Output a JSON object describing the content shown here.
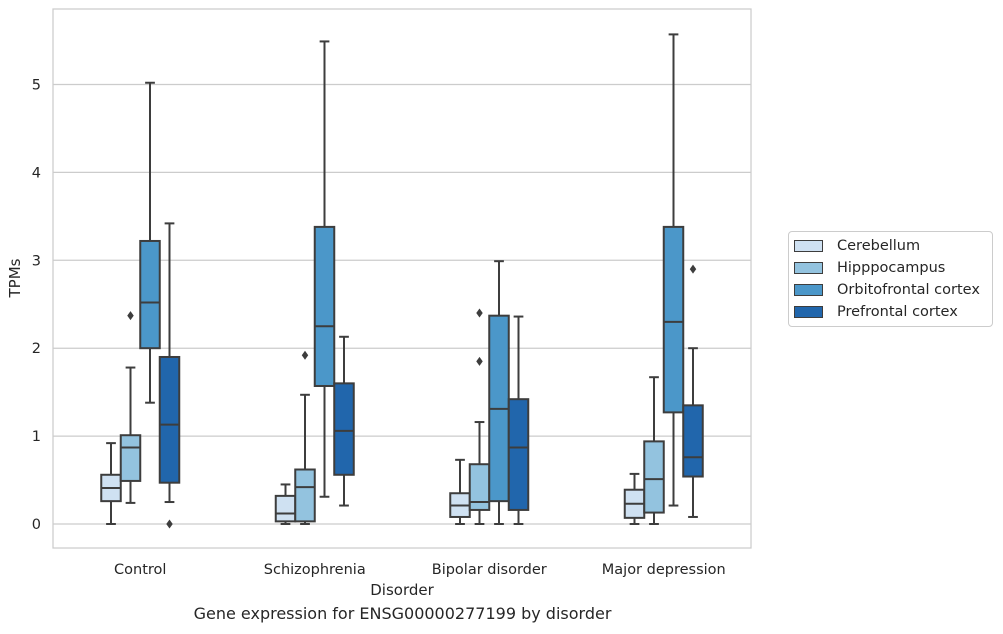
{
  "chart_data": {
    "type": "box",
    "caption": "Gene expression for ENSG00000277199 by disorder",
    "xlabel": "Disorder",
    "ylabel": "TPMs",
    "ylim": [
      -0.27,
      5.87
    ],
    "yticks": [
      0,
      1,
      2,
      3,
      4,
      5
    ],
    "grid": "horizontal",
    "legend_position": "right",
    "categories": [
      "Control",
      "Schizophrenia",
      "Bipolar disorder",
      "Major depression"
    ],
    "series": [
      {
        "name": "Cerebellum",
        "color": "#cfe1f2",
        "boxes": [
          {
            "whislo": 0.0,
            "q1": 0.26,
            "med": 0.41,
            "q3": 0.56,
            "whishi": 0.92,
            "fliers": []
          },
          {
            "whislo": 0.0,
            "q1": 0.03,
            "med": 0.12,
            "q3": 0.32,
            "whishi": 0.45,
            "fliers": []
          },
          {
            "whislo": 0.0,
            "q1": 0.08,
            "med": 0.21,
            "q3": 0.35,
            "whishi": 0.73,
            "fliers": []
          },
          {
            "whislo": 0.0,
            "q1": 0.07,
            "med": 0.23,
            "q3": 0.39,
            "whishi": 0.57,
            "fliers": []
          }
        ]
      },
      {
        "name": "Hipppocampus",
        "color": "#93c3df",
        "boxes": [
          {
            "whislo": 0.24,
            "q1": 0.49,
            "med": 0.87,
            "q3": 1.01,
            "whishi": 1.78,
            "fliers": [
              2.37
            ]
          },
          {
            "whislo": 0.0,
            "q1": 0.03,
            "med": 0.42,
            "q3": 0.62,
            "whishi": 1.47,
            "fliers": [
              1.92
            ]
          },
          {
            "whislo": 0.0,
            "q1": 0.16,
            "med": 0.25,
            "q3": 0.68,
            "whishi": 1.16,
            "fliers": [
              1.85,
              2.4
            ]
          },
          {
            "whislo": 0.0,
            "q1": 0.13,
            "med": 0.51,
            "q3": 0.94,
            "whishi": 1.67,
            "fliers": []
          }
        ]
      },
      {
        "name": "Orbitofrontal cortex",
        "color": "#4b97c9",
        "boxes": [
          {
            "whislo": 1.38,
            "q1": 2.0,
            "med": 2.52,
            "q3": 3.22,
            "whishi": 5.02,
            "fliers": []
          },
          {
            "whislo": 0.31,
            "q1": 1.57,
            "med": 2.25,
            "q3": 3.38,
            "whishi": 5.49,
            "fliers": []
          },
          {
            "whislo": 0.0,
            "q1": 0.26,
            "med": 1.31,
            "q3": 2.37,
            "whishi": 2.99,
            "fliers": []
          },
          {
            "whislo": 0.21,
            "q1": 1.27,
            "med": 2.3,
            "q3": 3.38,
            "whishi": 5.57,
            "fliers": []
          }
        ]
      },
      {
        "name": "Prefrontal cortex",
        "color": "#2166ac",
        "boxes": [
          {
            "whislo": 0.25,
            "q1": 0.47,
            "med": 1.13,
            "q3": 1.9,
            "whishi": 3.42,
            "fliers": [
              0.0
            ]
          },
          {
            "whislo": 0.21,
            "q1": 0.56,
            "med": 1.06,
            "q3": 1.6,
            "whishi": 2.13,
            "fliers": []
          },
          {
            "whislo": 0.0,
            "q1": 0.16,
            "med": 0.87,
            "q3": 1.42,
            "whishi": 2.36,
            "fliers": []
          },
          {
            "whislo": 0.08,
            "q1": 0.54,
            "med": 0.76,
            "q3": 1.35,
            "whishi": 2.0,
            "fliers": [
              2.9
            ]
          }
        ]
      }
    ]
  }
}
